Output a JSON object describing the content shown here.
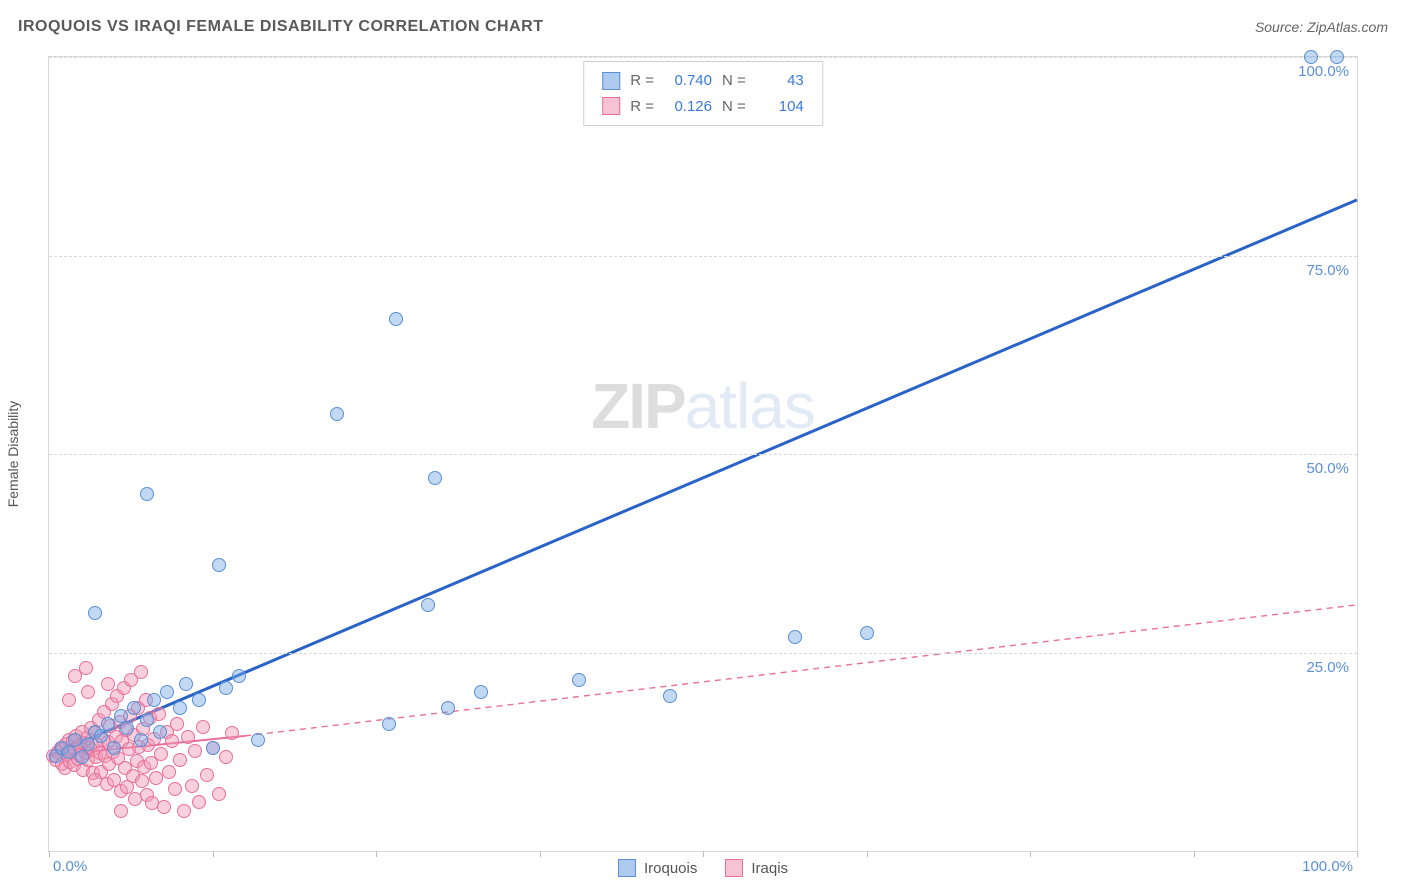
{
  "header": {
    "title": "IROQUOIS VS IRAQI FEMALE DISABILITY CORRELATION CHART",
    "source": "Source: ZipAtlas.com"
  },
  "watermark": {
    "part1": "ZIP",
    "part2": "atlas"
  },
  "chart": {
    "type": "scatter",
    "ylabel": "Female Disability",
    "xlim": [
      0,
      100
    ],
    "ylim": [
      0,
      100
    ],
    "x_tick_positions": [
      0,
      12.5,
      25,
      37.5,
      50,
      62.5,
      75,
      87.5,
      100
    ],
    "x_tick_labels_shown": {
      "0": "0.0%",
      "100": "100.0%"
    },
    "y_grid": [
      0,
      25,
      50,
      75,
      100
    ],
    "y_tick_labels": {
      "25": "25.0%",
      "50": "50.0%",
      "75": "75.0%",
      "100": "100.0%"
    },
    "background_color": "#ffffff",
    "grid_color": "#d8d8d8",
    "grid_dash": "4,4",
    "border_color": "#d8d8d8",
    "tick_label_color": "#5b8fd6",
    "axis_label_color": "#555555",
    "marker_radius": 7,
    "marker_stroke_width": 1.2,
    "series": [
      {
        "name": "Iroquois",
        "legend_label": "Iroquois",
        "R": "0.740",
        "N": "43",
        "color_fill": "rgba(120,170,230,0.45)",
        "color_stroke": "#5b8fd6",
        "swatch_fill": "#aecbef",
        "swatch_stroke": "#5b8fd6",
        "trend": {
          "x1": 0,
          "y1": 12,
          "x2": 100,
          "y2": 82,
          "stroke": "#2a63c8",
          "width": 3,
          "dash": ""
        },
        "points": [
          [
            0.5,
            12
          ],
          [
            1.0,
            13
          ],
          [
            1.5,
            12.5
          ],
          [
            2.0,
            14
          ],
          [
            2.5,
            11.8
          ],
          [
            3.0,
            13.5
          ],
          [
            3.5,
            15
          ],
          [
            4.0,
            14.5
          ],
          [
            4.5,
            16
          ],
          [
            5.0,
            13
          ],
          [
            5.5,
            17
          ],
          [
            6.0,
            15.5
          ],
          [
            6.5,
            18
          ],
          [
            7.0,
            14
          ],
          [
            7.5,
            16.5
          ],
          [
            8.0,
            19
          ],
          [
            8.5,
            15
          ],
          [
            9.0,
            20
          ],
          [
            10.0,
            18
          ],
          [
            10.5,
            21
          ],
          [
            11.5,
            19
          ],
          [
            12.5,
            13
          ],
          [
            13.5,
            20.5
          ],
          [
            14.5,
            22
          ],
          [
            16.0,
            14
          ],
          [
            3.5,
            30
          ],
          [
            7.5,
            45
          ],
          [
            13.0,
            36
          ],
          [
            22.0,
            55
          ],
          [
            26.0,
            16
          ],
          [
            26.5,
            67
          ],
          [
            29.0,
            31
          ],
          [
            29.5,
            47
          ],
          [
            30.5,
            18
          ],
          [
            33.0,
            20
          ],
          [
            40.5,
            21.5
          ],
          [
            47.5,
            19.5
          ],
          [
            57.0,
            27
          ],
          [
            62.5,
            27.5
          ],
          [
            96.5,
            100
          ],
          [
            98.5,
            100
          ]
        ]
      },
      {
        "name": "Iraqis",
        "legend_label": "Iraqis",
        "R": "0.126",
        "N": "104",
        "color_fill": "rgba(240,150,180,0.45)",
        "color_stroke": "#e86f9a",
        "swatch_fill": "#f6c3d4",
        "swatch_stroke": "#e86f9a",
        "trend": {
          "segments": [
            {
              "x1": 0,
              "y1": 12,
              "x2": 15,
              "y2": 14.5,
              "stroke": "#e86f9a",
              "width": 2,
              "dash": ""
            },
            {
              "x1": 15,
              "y1": 14.5,
              "x2": 100,
              "y2": 31,
              "stroke": "#e86f9a",
              "width": 1.4,
              "dash": "6,5"
            }
          ]
        },
        "points": [
          [
            0.3,
            12
          ],
          [
            0.5,
            11.5
          ],
          [
            0.7,
            12.5
          ],
          [
            0.9,
            13
          ],
          [
            1.0,
            11
          ],
          [
            1.1,
            12.8
          ],
          [
            1.2,
            10.5
          ],
          [
            1.3,
            13.5
          ],
          [
            1.4,
            12.2
          ],
          [
            1.5,
            14
          ],
          [
            1.6,
            11.2
          ],
          [
            1.7,
            12.6
          ],
          [
            1.8,
            13.8
          ],
          [
            1.9,
            10.8
          ],
          [
            2.0,
            12.9
          ],
          [
            2.1,
            14.5
          ],
          [
            2.2,
            11.6
          ],
          [
            2.3,
            13.2
          ],
          [
            2.4,
            12.1
          ],
          [
            2.5,
            15
          ],
          [
            2.6,
            10.2
          ],
          [
            2.7,
            13.6
          ],
          [
            2.8,
            12.4
          ],
          [
            2.9,
            14.2
          ],
          [
            3.0,
            11.4
          ],
          [
            3.1,
            13.0
          ],
          [
            3.2,
            15.5
          ],
          [
            3.3,
            12.7
          ],
          [
            3.4,
            9.8
          ],
          [
            3.5,
            14.8
          ],
          [
            3.6,
            11.9
          ],
          [
            3.7,
            13.4
          ],
          [
            3.8,
            16.5
          ],
          [
            3.9,
            12.3
          ],
          [
            4.0,
            10.0
          ],
          [
            4.1,
            14.0
          ],
          [
            4.2,
            17.5
          ],
          [
            4.3,
            12.0
          ],
          [
            4.4,
            8.5
          ],
          [
            4.5,
            13.7
          ],
          [
            4.6,
            11.0
          ],
          [
            4.7,
            15.8
          ],
          [
            4.8,
            18.5
          ],
          [
            4.9,
            12.5
          ],
          [
            5.0,
            9.0
          ],
          [
            5.1,
            14.3
          ],
          [
            5.2,
            19.5
          ],
          [
            5.3,
            11.7
          ],
          [
            5.4,
            16.2
          ],
          [
            5.5,
            7.5
          ],
          [
            5.6,
            13.9
          ],
          [
            5.7,
            20.5
          ],
          [
            5.8,
            10.4
          ],
          [
            5.9,
            15.2
          ],
          [
            6.0,
            8.0
          ],
          [
            6.1,
            12.8
          ],
          [
            6.2,
            17.0
          ],
          [
            6.3,
            21.5
          ],
          [
            6.4,
            9.5
          ],
          [
            6.5,
            14.6
          ],
          [
            6.6,
            6.5
          ],
          [
            6.7,
            11.3
          ],
          [
            6.8,
            18.0
          ],
          [
            6.9,
            13.1
          ],
          [
            7.0,
            22.5
          ],
          [
            7.1,
            8.8
          ],
          [
            7.2,
            15.4
          ],
          [
            7.3,
            10.6
          ],
          [
            7.4,
            19.0
          ],
          [
            7.5,
            7.0
          ],
          [
            7.6,
            13.3
          ],
          [
            7.7,
            16.8
          ],
          [
            7.8,
            11.1
          ],
          [
            7.9,
            6.0
          ],
          [
            8.0,
            14.1
          ],
          [
            8.2,
            9.2
          ],
          [
            8.4,
            17.2
          ],
          [
            8.6,
            12.2
          ],
          [
            8.8,
            5.5
          ],
          [
            9.0,
            15.0
          ],
          [
            9.2,
            10.0
          ],
          [
            9.4,
            13.8
          ],
          [
            9.6,
            7.8
          ],
          [
            9.8,
            16.0
          ],
          [
            10.0,
            11.5
          ],
          [
            10.3,
            5.0
          ],
          [
            10.6,
            14.4
          ],
          [
            10.9,
            8.2
          ],
          [
            11.2,
            12.6
          ],
          [
            11.5,
            6.2
          ],
          [
            11.8,
            15.6
          ],
          [
            12.1,
            9.6
          ],
          [
            12.5,
            13.0
          ],
          [
            13.0,
            7.2
          ],
          [
            13.5,
            11.8
          ],
          [
            14.0,
            14.9
          ],
          [
            2.0,
            22.0
          ],
          [
            3.0,
            20.0
          ],
          [
            4.5,
            21.0
          ],
          [
            1.5,
            19.0
          ],
          [
            2.8,
            23.0
          ],
          [
            3.5,
            9.0
          ],
          [
            5.5,
            5.0
          ]
        ]
      }
    ]
  },
  "legend_top": {
    "r_label": "R =",
    "n_label": "N ="
  }
}
